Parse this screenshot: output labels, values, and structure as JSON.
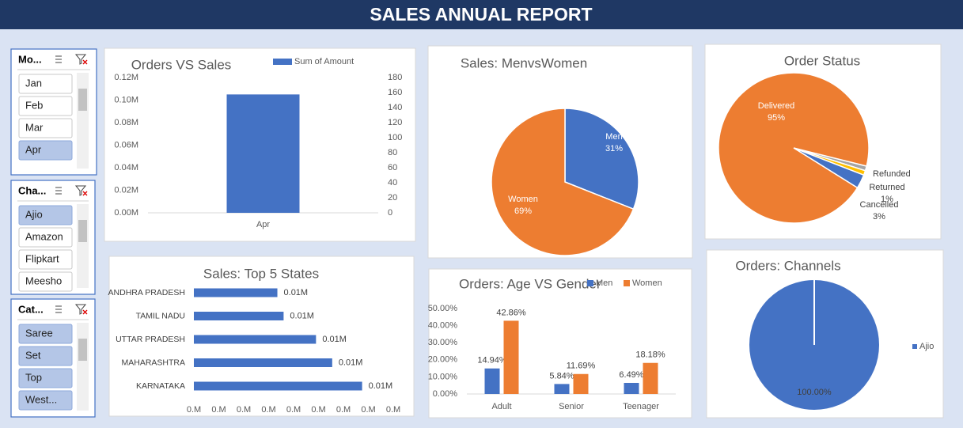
{
  "header": {
    "title": "SALES ANNUAL REPORT"
  },
  "slicers": [
    {
      "title": "Mo...",
      "items": [
        {
          "label": "Jan",
          "selected": false
        },
        {
          "label": "Feb",
          "selected": false
        },
        {
          "label": "Mar",
          "selected": false
        },
        {
          "label": "Apr",
          "selected": true
        }
      ]
    },
    {
      "title": "Cha...",
      "items": [
        {
          "label": "Ajio",
          "selected": true
        },
        {
          "label": "Amazon",
          "selected": false
        },
        {
          "label": "Flipkart",
          "selected": false
        },
        {
          "label": "Meesho",
          "selected": false
        }
      ]
    },
    {
      "title": "Cat...",
      "items": [
        {
          "label": "Saree",
          "selected": true
        },
        {
          "label": "Set",
          "selected": true
        },
        {
          "label": "Top",
          "selected": true
        },
        {
          "label": "West...",
          "selected": true
        }
      ]
    }
  ],
  "chart_data": [
    {
      "type": "bar",
      "title": "Orders VS Sales",
      "categories": [
        "Apr"
      ],
      "series": [
        {
          "name": "Sum of Amount",
          "color": "#4472c4",
          "values": [
            0.105
          ]
        }
      ],
      "ylim": [
        0,
        0.12
      ],
      "yticks": [
        {
          "value": 0,
          "label": "0.00M"
        },
        {
          "value": 0.02,
          "label": "0.02M"
        },
        {
          "value": 0.04,
          "label": "0.04M"
        },
        {
          "value": 0.06,
          "label": "0.06M"
        },
        {
          "value": 0.08,
          "label": "0.08M"
        },
        {
          "value": 0.1,
          "label": "0.10M"
        },
        {
          "value": 0.12,
          "label": "0.12M"
        }
      ],
      "y2lim": [
        0,
        180
      ],
      "y2ticks": [
        0,
        20,
        40,
        60,
        80,
        100,
        120,
        140,
        160,
        180
      ],
      "legend": "top",
      "grid": false
    },
    {
      "type": "pie",
      "title": "Sales: MenvsWomen",
      "categories": [
        "Men",
        "Women"
      ],
      "values": [
        31,
        69
      ],
      "value_labels": [
        "31%",
        "69%"
      ],
      "colors": [
        "#4472c4",
        "#ed7d31"
      ]
    },
    {
      "type": "pie",
      "title": "Order Status",
      "categories": [
        "Refunded",
        "Returned",
        "Cancelled",
        "Delivered"
      ],
      "values": [
        1,
        1,
        3,
        95
      ],
      "value_labels": [
        null,
        "1%",
        "3%",
        "95%"
      ],
      "colors": [
        "#a5a5a5",
        "#ffc000",
        "#4472c4",
        "#ed7d31"
      ]
    },
    {
      "type": "barh",
      "title": "Sales: Top 5 States",
      "categories": [
        "ANDHRA PRADESH",
        "TAMIL NADU",
        "UTTAR PRADESH",
        "MAHARASHTRA",
        "KARNATAKA"
      ],
      "values": [
        0.0067,
        0.0072,
        0.0098,
        0.0111,
        0.0135
      ],
      "value_labels": [
        "0.01M",
        "0.01M",
        "0.01M",
        "0.01M",
        "0.01M"
      ],
      "color": "#4472c4",
      "xlim": [
        0,
        0.016
      ],
      "xticks": [
        {
          "value": 0,
          "label": "0.M"
        },
        {
          "value": 0.002,
          "label": "0.M"
        },
        {
          "value": 0.004,
          "label": "0.M"
        },
        {
          "value": 0.006,
          "label": "0.M"
        },
        {
          "value": 0.008,
          "label": "0.M"
        },
        {
          "value": 0.01,
          "label": "0.M"
        },
        {
          "value": 0.012,
          "label": "0.M"
        },
        {
          "value": 0.014,
          "label": "0.M"
        },
        {
          "value": 0.016,
          "label": "0.M"
        }
      ]
    },
    {
      "type": "bar",
      "title": "Orders: Age VS Gender",
      "categories": [
        "Adult",
        "Senior",
        "Teenager"
      ],
      "series": [
        {
          "name": "Men",
          "color": "#4472c4",
          "values": [
            14.94,
            5.84,
            6.49
          ],
          "value_labels": [
            "14.94%",
            "5.84%",
            "6.49%"
          ]
        },
        {
          "name": "Women",
          "color": "#ed7d31",
          "values": [
            42.86,
            11.69,
            18.18
          ],
          "value_labels": [
            "42.86%",
            "11.69%",
            "18.18%"
          ]
        }
      ],
      "ylim": [
        0,
        50
      ],
      "yticks": [
        {
          "value": 0,
          "label": "0.00%"
        },
        {
          "value": 10,
          "label": "10.00%"
        },
        {
          "value": 20,
          "label": "20.00%"
        },
        {
          "value": 30,
          "label": "30.00%"
        },
        {
          "value": 40,
          "label": "40.00%"
        },
        {
          "value": 50,
          "label": "50.00%"
        }
      ],
      "legend": "top",
      "grid": false
    },
    {
      "type": "pie",
      "title": "Orders: Channels",
      "categories": [
        "Ajio"
      ],
      "values": [
        100
      ],
      "value_labels": [
        "100.00%"
      ],
      "colors": [
        "#4472c4"
      ],
      "legend": "right"
    }
  ]
}
